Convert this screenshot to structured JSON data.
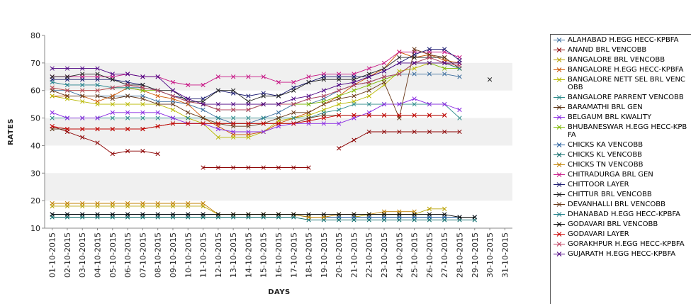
{
  "chart_data": {
    "type": "line",
    "title": "",
    "xlabel": "DAYS",
    "ylabel": "RATES",
    "ylim": [
      10,
      80
    ],
    "yticks": [
      10,
      20,
      30,
      40,
      50,
      60,
      70,
      80
    ],
    "categories": [
      "01-10-2015",
      "02-10-2015",
      "03-10-2015",
      "04-10-2015",
      "05-10-2015",
      "06-10-2015",
      "07-10-2015",
      "08-10-2015",
      "09-10-2015",
      "10-10-2015",
      "11-10-2015",
      "12-10-2015",
      "13-10-2015",
      "14-10-2015",
      "15-10-2015",
      "16-10-2015",
      "17-10-2015",
      "18-10-2015",
      "19-10-2015",
      "20-10-2015",
      "21-10-2015",
      "22-10-2015",
      "23-10-2015",
      "24-10-2015",
      "25-10-2015",
      "26-10-2015",
      "27-10-2015",
      "28-10-2015",
      "29-10-2015",
      "30-10-2015",
      "31-10-2015"
    ],
    "series": [
      {
        "name": "ALAHABAD H.EGG HECC-KPBFA",
        "color": "#3c6e9e",
        "values": [
          60,
          60,
          58,
          58,
          58,
          58,
          58,
          56,
          56,
          55,
          53,
          50,
          48,
          48,
          50,
          52,
          55,
          55,
          57,
          60,
          62,
          63,
          65,
          66,
          66,
          66,
          66,
          65,
          null,
          null,
          null
        ]
      },
      {
        "name": "ANAND BRL VENCOBB",
        "color": "#8b0000",
        "values": [
          47,
          45,
          43,
          41,
          37,
          38,
          38,
          37,
          null,
          null,
          32,
          32,
          32,
          32,
          32,
          32,
          32,
          32,
          null,
          39,
          42,
          45,
          45,
          45,
          45,
          45,
          45,
          45,
          null,
          null,
          null
        ]
      },
      {
        "name": "BANGALORE BRL VENCOBB",
        "color": "#b8a000",
        "values": [
          18,
          18,
          18,
          18,
          18,
          18,
          18,
          18,
          18,
          18,
          18,
          15,
          15,
          15,
          15,
          15,
          15,
          14,
          14,
          14,
          14,
          15,
          15,
          15,
          15,
          17,
          17,
          null,
          null,
          null,
          null
        ]
      },
      {
        "name": "BANGALORE H.EGG HECC-KPBFA",
        "color": "#cc5500",
        "values": [
          58,
          58,
          58,
          56,
          58,
          61,
          60,
          58,
          57,
          55,
          50,
          47,
          44,
          44,
          45,
          48,
          50,
          52,
          55,
          58,
          62,
          65,
          68,
          74,
          72,
          73,
          71,
          70,
          null,
          null,
          null
        ]
      },
      {
        "name": "BANGALORE NETT SEL BRL VENCOBB",
        "color": "#b8b800",
        "values": [
          58,
          57,
          56,
          55,
          55,
          55,
          55,
          55,
          53,
          50,
          48,
          43,
          43,
          43,
          45,
          49,
          50,
          51,
          53,
          55,
          56,
          58,
          62,
          67,
          68,
          70,
          70,
          68,
          null,
          null,
          null
        ]
      },
      {
        "name": "BANGALORE PARRENT VENCOBB",
        "color": "#2e8b8b",
        "values": [
          50,
          50,
          50,
          50,
          50,
          50,
          50,
          50,
          50,
          50,
          50,
          50,
          50,
          50,
          50,
          50,
          50,
          50,
          52,
          53,
          55,
          55,
          55,
          55,
          55,
          55,
          55,
          50,
          null,
          null,
          null
        ]
      },
      {
        "name": "BARAMATHI BRL GEN",
        "color": "#5a3010",
        "values": [
          46,
          46,
          46,
          46,
          46,
          46,
          46,
          47,
          48,
          48,
          48,
          48,
          48,
          48,
          48,
          48,
          48,
          50,
          51,
          51,
          51,
          51,
          51,
          51,
          51,
          51,
          51,
          null,
          null,
          null,
          null
        ]
      },
      {
        "name": "BELGAUM BRL KWALITY",
        "color": "#8a2be2",
        "values": [
          52,
          50,
          50,
          50,
          52,
          52,
          52,
          52,
          50,
          48,
          48,
          46,
          45,
          45,
          45,
          47,
          48,
          48,
          48,
          48,
          50,
          52,
          55,
          55,
          57,
          55,
          55,
          53,
          null,
          null,
          null
        ]
      },
      {
        "name": "BHUBANESWAR H.EGG HECC-KPBFA",
        "color": "#7cb800",
        "values": [
          61,
          60,
          60,
          60,
          61,
          61,
          60,
          60,
          58,
          56,
          55,
          53,
          53,
          53,
          55,
          55,
          55,
          55,
          56,
          58,
          60,
          62,
          64,
          66,
          70,
          70,
          68,
          68,
          null,
          null,
          null
        ]
      },
      {
        "name": "CHICKS KA VENCOBB",
        "color": "#1f5a9e",
        "values": [
          15,
          15,
          15,
          15,
          15,
          15,
          15,
          15,
          15,
          15,
          15,
          15,
          15,
          15,
          15,
          15,
          15,
          14,
          14,
          14,
          14,
          14,
          14,
          14,
          14,
          14,
          14,
          14,
          14,
          null,
          null
        ]
      },
      {
        "name": "CHICKS KL VENCOBB",
        "color": "#0a6a6a",
        "values": [
          14,
          14,
          14,
          14,
          14,
          14,
          14,
          14,
          14,
          14,
          14,
          14,
          14,
          14,
          14,
          14,
          14,
          13,
          13,
          13,
          13,
          13,
          13,
          13,
          13,
          13,
          13,
          13,
          13,
          null,
          null
        ]
      },
      {
        "name": "CHICKS TN VENCOBB",
        "color": "#c08000",
        "values": [
          19,
          19,
          19,
          19,
          19,
          19,
          19,
          19,
          19,
          19,
          19,
          15,
          15,
          15,
          15,
          15,
          15,
          14,
          14,
          15,
          15,
          15,
          16,
          16,
          16,
          null,
          null,
          null,
          null,
          null,
          null
        ]
      },
      {
        "name": "CHITRADURGA BRL GEN",
        "color": "#c71585",
        "values": [
          65,
          65,
          65,
          65,
          65,
          66,
          65,
          65,
          63,
          62,
          62,
          65,
          65,
          65,
          65,
          63,
          63,
          65,
          66,
          66,
          66,
          68,
          70,
          74,
          74,
          74,
          74,
          72,
          null,
          null,
          null
        ]
      },
      {
        "name": "CHITTOOR LAYER",
        "color": "#191970",
        "values": [
          64,
          64,
          64,
          64,
          64,
          63,
          62,
          60,
          58,
          57,
          57,
          60,
          59,
          58,
          59,
          58,
          61,
          63,
          65,
          65,
          65,
          65,
          67,
          70,
          73,
          75,
          75,
          71,
          null,
          null,
          null
        ]
      },
      {
        "name": "CHITTUR BRL VENCOBB",
        "color": "#222222",
        "values": [
          65,
          65,
          66,
          66,
          64,
          62,
          62,
          60,
          60,
          56,
          56,
          60,
          60,
          56,
          58,
          58,
          60,
          63,
          64,
          64,
          64,
          66,
          68,
          72,
          72,
          72,
          72,
          68,
          null,
          64,
          null
        ]
      },
      {
        "name": "DEVANHALLI BRL VENCOBB",
        "color": "#6b3a1a",
        "values": [
          60,
          58,
          58,
          58,
          57,
          58,
          57,
          55,
          55,
          52,
          50,
          48,
          47,
          47,
          48,
          50,
          52,
          52,
          55,
          57,
          58,
          60,
          63,
          50,
          75,
          73,
          72,
          68,
          null,
          null,
          null
        ]
      },
      {
        "name": "DHANABAD H.EGG HECC-KPBFA",
        "color": "#20808a",
        "values": [
          63,
          62,
          62,
          62,
          61,
          61,
          61,
          60,
          58,
          56,
          55,
          53,
          53,
          53,
          55,
          55,
          55,
          57,
          58,
          60,
          62,
          63,
          65,
          66,
          70,
          72,
          70,
          68,
          null,
          null,
          null
        ]
      },
      {
        "name": "GODAVARI BRL VENCOBB",
        "color": "#000000",
        "values": [
          15,
          15,
          15,
          15,
          15,
          15,
          15,
          15,
          15,
          15,
          15,
          15,
          15,
          15,
          15,
          15,
          15,
          15,
          15,
          15,
          15,
          15,
          15,
          15,
          15,
          15,
          15,
          14,
          14,
          null,
          null
        ]
      },
      {
        "name": "GODAVARI LAYER",
        "color": "#cc0000",
        "values": [
          47,
          46,
          46,
          46,
          46,
          46,
          46,
          47,
          48,
          48,
          48,
          48,
          48,
          48,
          48,
          48,
          48,
          49,
          50,
          51,
          51,
          51,
          51,
          51,
          51,
          51,
          51,
          null,
          null,
          null,
          null
        ]
      },
      {
        "name": "GORAKHPUR H.EGG HECC-KPBFA",
        "color": "#c04060",
        "values": [
          61,
          60,
          60,
          60,
          61,
          62,
          61,
          60,
          58,
          56,
          55,
          53,
          53,
          53,
          55,
          55,
          55,
          57,
          58,
          60,
          62,
          63,
          65,
          66,
          70,
          72,
          70,
          69,
          null,
          null,
          null
        ]
      },
      {
        "name": "GUJARATH H.EGG HECC-KPBFA",
        "color": "#4b0082",
        "values": [
          68,
          68,
          68,
          68,
          66,
          66,
          65,
          65,
          60,
          57,
          55,
          55,
          55,
          55,
          55,
          55,
          57,
          58,
          60,
          62,
          63,
          65,
          67,
          70,
          70,
          70,
          70,
          70,
          null,
          null,
          null
        ]
      }
    ]
  }
}
